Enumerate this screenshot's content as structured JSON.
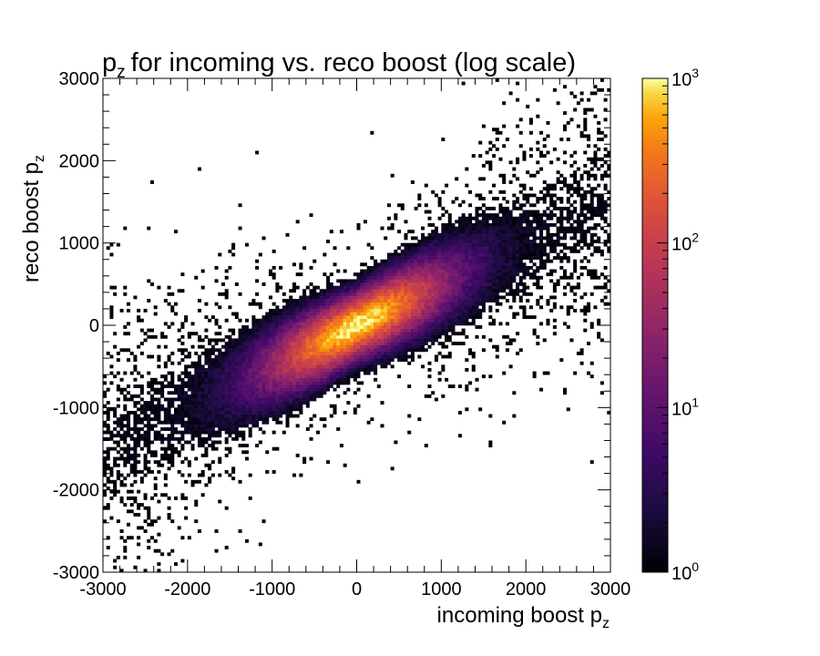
{
  "chart_data": {
    "type": "heatmap",
    "title": "for incoming vs. reco boost (log scale)",
    "title_prefix": "p",
    "title_prefix_sub": "z",
    "xlabel": "incoming boost p",
    "xlabel_sub": "z",
    "ylabel": "reco boost p",
    "ylabel_sub": "z",
    "xlim": [
      -3000,
      3000
    ],
    "ylim": [
      -3000,
      3000
    ],
    "xticks": [
      -3000,
      -2000,
      -1000,
      0,
      1000,
      2000,
      3000
    ],
    "yticks": [
      -3000,
      -2000,
      -1000,
      0,
      1000,
      2000,
      3000
    ],
    "xtick_labels": [
      "-3000",
      "-2000",
      "-1000",
      "0",
      "1000",
      "2000",
      "3000"
    ],
    "ytick_labels": [
      "-3000",
      "-2000",
      "-1000",
      "0",
      "1000",
      "2000",
      "3000"
    ],
    "colorbar": {
      "scale": "log",
      "range": [
        1,
        1000
      ],
      "tick_base": "10",
      "tick_exponents": [
        "0",
        "1",
        "2",
        "3"
      ],
      "colormap": "inferno"
    },
    "distribution": {
      "correlation_slope": 0.5,
      "peak_counts": 1000,
      "peak_location": [
        0,
        0
      ],
      "description_note_free": true
    },
    "grid": false,
    "colors": {
      "low": "#000004",
      "mid_low": "#420a68",
      "mid": "#932667",
      "mid_high": "#dd513a",
      "high": "#fca50a",
      "max": "#fcffa4"
    }
  }
}
